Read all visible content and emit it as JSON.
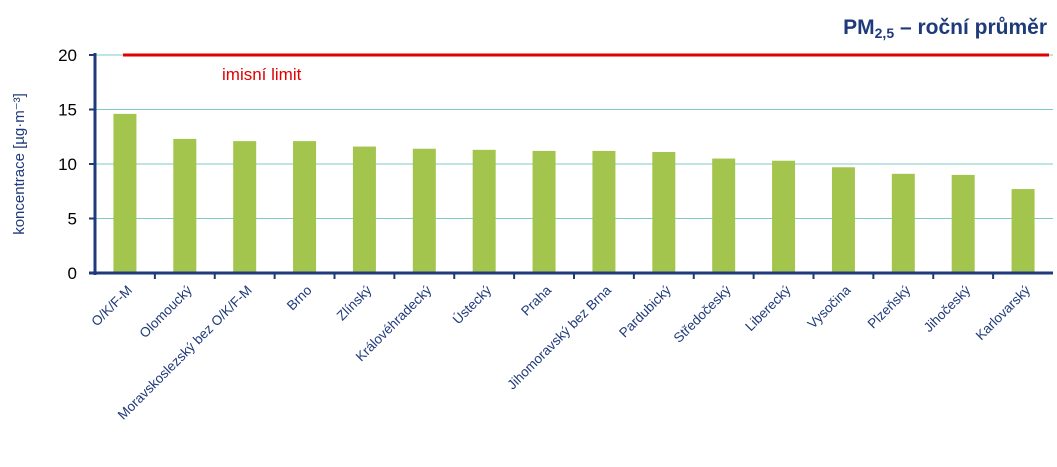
{
  "chart_data": {
    "type": "bar",
    "title": {
      "prefix": "PM",
      "subscript": "2,5",
      "suffix": " – roční průměr"
    },
    "ylabel": "koncentrace [µg·m⁻³]",
    "xlabel": "",
    "ylim": [
      0,
      20
    ],
    "yticks": [
      0,
      5,
      10,
      15,
      20
    ],
    "grid": true,
    "categories": [
      "O/K/F-M",
      "Olomoucký",
      "Moravskoslezský bez O/K/F-M",
      "Brno",
      "Zlínský",
      "Královéhradecký",
      "Ústecký",
      "Praha",
      "Jihomoravský bez Brna",
      "Pardubický",
      "Středočeský",
      "Liberecký",
      "Vysočina",
      "Plzeňský",
      "Jihočeský",
      "Karlovarský"
    ],
    "values": [
      14.6,
      12.3,
      12.1,
      12.1,
      11.6,
      11.4,
      11.3,
      11.2,
      11.2,
      11.1,
      10.5,
      10.3,
      9.7,
      9.1,
      9.0,
      7.7
    ],
    "limit": {
      "value": 20,
      "label": "imisní limit"
    },
    "colors": {
      "bar": "#a3c54d",
      "limit": "#e00000",
      "grid": "#7ec8c8",
      "axis": "#1f3a7a",
      "text": "#1f3a7a"
    }
  }
}
